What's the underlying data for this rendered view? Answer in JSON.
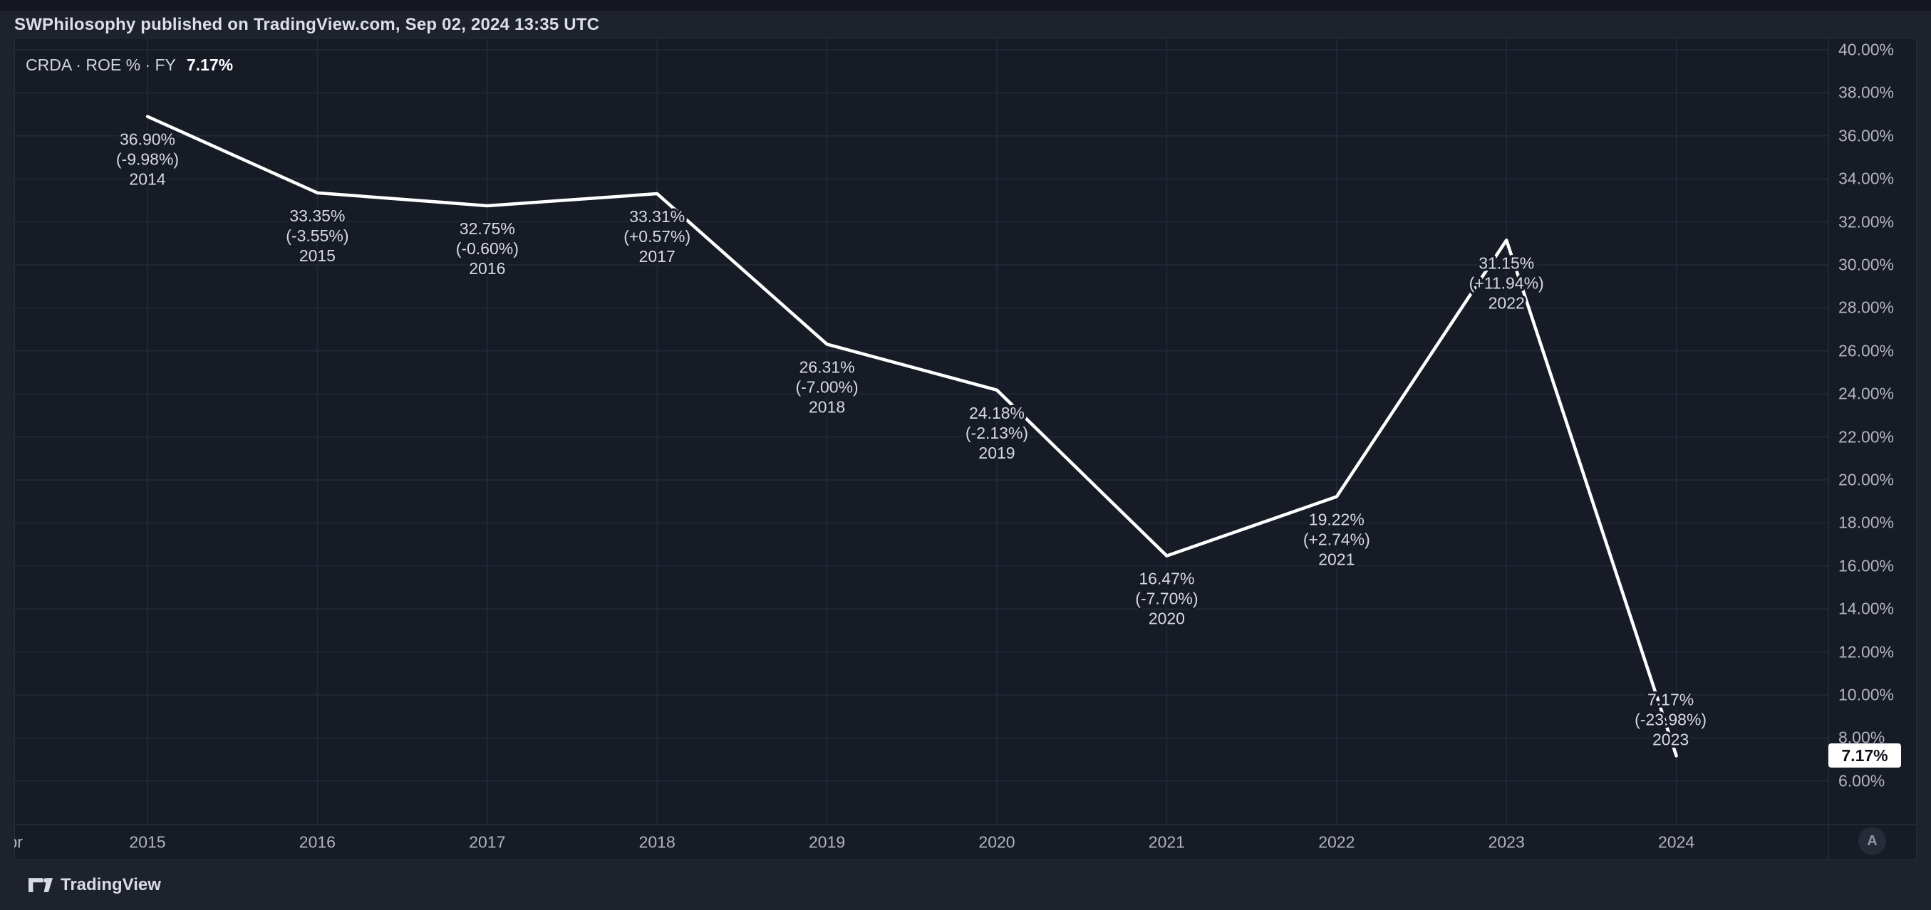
{
  "header": {
    "text": "SWPhilosophy published on TradingView.com, Sep 02, 2024 13:35 UTC"
  },
  "legend": {
    "title": "CRDA · ROE % · FY",
    "value": "7.17%"
  },
  "price_scale": {
    "current_badge": "7.17%"
  },
  "time_axis": {
    "corner_button_label": "A"
  },
  "footer": {
    "brand": "TradingView"
  },
  "colors": {
    "outer_background": "#1e222d",
    "pane_background": "#171b26",
    "grid": "#242a39",
    "border": "#2a2e39",
    "line": "#ffffff",
    "axis_text": "#b2b5be",
    "label_text": "#d6d9e2",
    "badge_background": "#ffffff",
    "badge_text": "#10131c"
  },
  "chart_data": {
    "type": "line",
    "title": "CRDA · ROE % · FY",
    "series_name": "ROE %",
    "legend_position": "top-left",
    "grid": true,
    "line_color": "#ffffff",
    "current_value": 7.17,
    "current_value_label": "7.17%",
    "ylim": [
      3.9,
      40.6
    ],
    "y_ticks_percent": [
      40,
      38,
      36,
      34,
      32,
      30,
      28,
      26,
      24,
      22,
      20,
      18,
      16,
      14,
      12,
      10,
      8,
      6
    ],
    "x_axis_labels": [
      "Apr",
      "2015",
      "2016",
      "2017",
      "2018",
      "2019",
      "2020",
      "2021",
      "2022",
      "2023",
      "2024"
    ],
    "points": [
      {
        "year": "2014",
        "value": 36.9,
        "value_label": "36.90%",
        "change_label": "(-9.98%)"
      },
      {
        "year": "2015",
        "value": 33.35,
        "value_label": "33.35%",
        "change_label": "(-3.55%)"
      },
      {
        "year": "2016",
        "value": 32.75,
        "value_label": "32.75%",
        "change_label": "(-0.60%)"
      },
      {
        "year": "2017",
        "value": 33.31,
        "value_label": "33.31%",
        "change_label": "(+0.57%)"
      },
      {
        "year": "2018",
        "value": 26.31,
        "value_label": "26.31%",
        "change_label": "(-7.00%)"
      },
      {
        "year": "2019",
        "value": 24.18,
        "value_label": "24.18%",
        "change_label": "(-2.13%)"
      },
      {
        "year": "2020",
        "value": 16.47,
        "value_label": "16.47%",
        "change_label": "(-7.70%)"
      },
      {
        "year": "2021",
        "value": 19.22,
        "value_label": "19.22%",
        "change_label": "(+2.74%)"
      },
      {
        "year": "2022",
        "value": 31.15,
        "value_label": "31.15%",
        "change_label": "(+11.94%)"
      },
      {
        "year": "2023",
        "value": 7.17,
        "value_label": "7.17%",
        "change_label": "(-23.98%)",
        "label_above": true
      }
    ]
  }
}
